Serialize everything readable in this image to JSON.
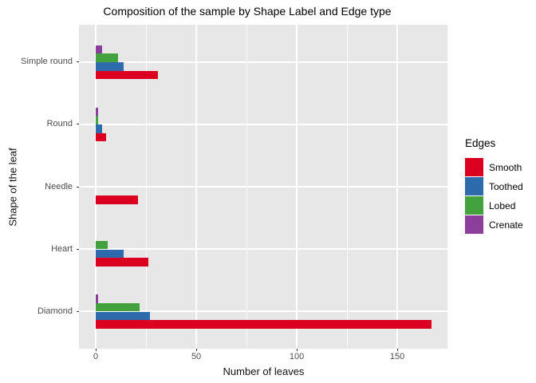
{
  "chart_data": {
    "type": "bar",
    "orientation": "horizontal",
    "title": "Composition of the sample by Shape Label and Edge type",
    "xlabel": "Number of leaves",
    "ylabel": "Shape of the leaf",
    "categories": [
      "Simple round",
      "Round",
      "Needle",
      "Heart",
      "Diamond"
    ],
    "series": [
      {
        "name": "Smooth",
        "color": "#DB0020",
        "values": [
          31,
          5,
          21,
          26,
          167
        ]
      },
      {
        "name": "Toothed",
        "color": "#2E6BAC",
        "values": [
          14,
          3,
          0,
          14,
          27
        ]
      },
      {
        "name": "Lobed",
        "color": "#44A23E",
        "values": [
          11,
          1,
          0,
          6,
          22
        ]
      },
      {
        "name": "Crenate",
        "color": "#8B3F9B",
        "values": [
          3,
          1,
          0,
          0,
          1
        ]
      }
    ],
    "xticks": [
      0,
      50,
      100,
      150
    ],
    "minor_xticks": [
      25,
      75,
      125,
      175
    ],
    "xlim": [
      -8.35,
      175.35
    ],
    "grid": true,
    "panel_bg": "#E7E7E7",
    "grid_color": "#FFFFFF",
    "legend": {
      "title": "Edges",
      "position": "right"
    }
  }
}
